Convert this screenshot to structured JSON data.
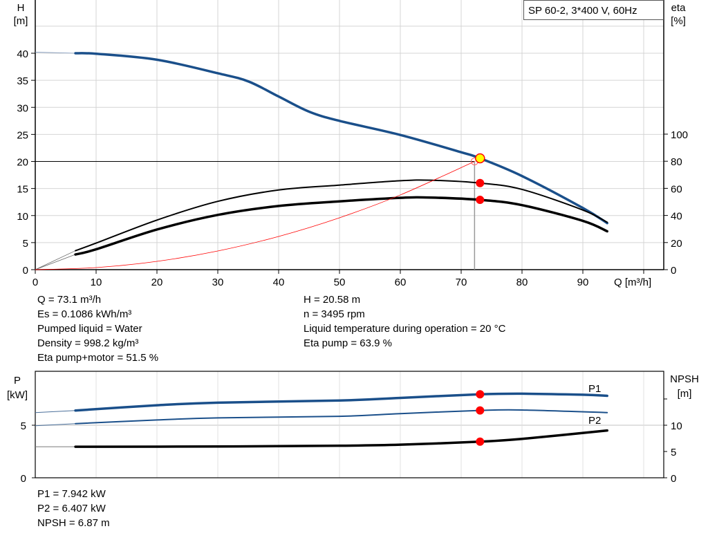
{
  "chart_data": [
    {
      "type": "line",
      "title": "SP 60-2, 3*400 V, 60Hz",
      "xlabel": "Q [m³/h]",
      "ylabel": "H\n[m]",
      "y2label": "eta\n[%]",
      "xlim": [
        0,
        103
      ],
      "ylim": [
        0,
        50
      ],
      "y2lim": [
        0,
        127.5
      ],
      "xticks": [
        0,
        10,
        20,
        30,
        40,
        50,
        60,
        70,
        80,
        90
      ],
      "yticks": [
        0,
        5,
        10,
        15,
        20,
        25,
        30,
        35,
        40
      ],
      "y2ticks": [
        0,
        20,
        40,
        60,
        80,
        100
      ],
      "grid": true,
      "colors": {
        "head": "#1a4f8a",
        "eta": "#000000",
        "system": "#ff0000",
        "duty_point": "#ffff00",
        "marker": "#ff0000"
      },
      "series": [
        {
          "key": "head",
          "axis": "H",
          "x": [
            6.6,
            10,
            20,
            30,
            35,
            40,
            45,
            50,
            60,
            70,
            73.1,
            80,
            90,
            94
          ],
          "y": [
            40,
            39.9,
            38.8,
            36.3,
            34.8,
            32,
            29.2,
            27.5,
            24.9,
            21.7,
            20.58,
            17.3,
            11.4,
            8.6
          ],
          "extrapolated_start": [
            0,
            40.2
          ]
        },
        {
          "key": "eta_pump",
          "axis": "eta",
          "x": [
            6.6,
            10,
            20,
            30,
            40,
            50,
            60,
            65,
            73.1,
            80,
            90,
            94
          ],
          "y": [
            14,
            19.6,
            36.6,
            50.4,
            58.8,
            62.4,
            65.6,
            66,
            63.9,
            59.2,
            44,
            35
          ],
          "extrapolated_start": [
            0,
            0
          ]
        },
        {
          "key": "eta_pump_motor",
          "axis": "eta",
          "x": [
            6.6,
            10,
            20,
            30,
            40,
            50,
            60,
            65,
            73.1,
            80,
            90,
            94
          ],
          "y": [
            11.2,
            15,
            29.6,
            40.4,
            47,
            50.4,
            53,
            53.2,
            51.5,
            47.6,
            36,
            28.3
          ],
          "extrapolated_start": [
            0,
            0
          ]
        },
        {
          "key": "system",
          "axis": "H",
          "x": [
            0,
            10,
            20,
            30,
            40,
            50,
            60,
            72.2
          ],
          "y": [
            0,
            0.38,
            1.53,
            3.45,
            6.14,
            9.59,
            13.81,
            20
          ]
        }
      ],
      "duty_point": {
        "Q": 73.1,
        "H": 20.58
      },
      "requested_point": {
        "Q": 72.2,
        "H": 20
      }
    },
    {
      "type": "line",
      "xlabel": "",
      "ylabel": "P\n[kW]",
      "y2label": "NPSH\n[m]",
      "xlim": [
        0,
        103
      ],
      "ylim": [
        0,
        10
      ],
      "y2lim": [
        0,
        20
      ],
      "yticks": [
        0,
        5
      ],
      "y2ticks": [
        0,
        5,
        10
      ],
      "grid": true,
      "series": [
        {
          "name": "P1",
          "key": "p1",
          "axis": "P",
          "x": [
            6.6,
            20,
            30,
            50,
            60,
            73.1,
            80,
            90,
            94
          ],
          "y": [
            6.4,
            6.9,
            7.15,
            7.35,
            7.6,
            7.942,
            8.0,
            7.9,
            7.8
          ],
          "extrapolated_start": [
            0,
            6.2
          ]
        },
        {
          "name": "P2",
          "key": "p2",
          "axis": "P",
          "x": [
            6.6,
            20,
            30,
            50,
            60,
            73.1,
            80,
            94
          ],
          "y": [
            5.15,
            5.5,
            5.7,
            5.85,
            6.1,
            6.407,
            6.45,
            6.2
          ],
          "extrapolated_start": [
            0,
            4.95
          ]
        },
        {
          "key": "npsh",
          "axis": "NPSH",
          "x": [
            6.6,
            30,
            50,
            60,
            73.1,
            80,
            94
          ],
          "y": [
            5.9,
            5.95,
            6.1,
            6.3,
            6.87,
            7.4,
            9.0
          ],
          "extrapolated_start": [
            0,
            5.9
          ]
        }
      ],
      "duty_Q": 73.1
    }
  ],
  "info_top": {
    "left": [
      "Q = 73.1 m³/h",
      "Es = 0.1086 kWh/m³",
      "Pumped liquid = Water",
      "Density = 998.2 kg/m³",
      "Eta pump+motor = 51.5 %"
    ],
    "right": [
      "H = 20.58 m",
      "n = 3495 rpm",
      "Liquid temperature during operation = 20 °C",
      "Eta pump = 63.9 %"
    ]
  },
  "info_bottom": [
    "P1 = 7.942 kW",
    "P2 = 6.407 kW",
    "NPSH = 6.87 m"
  ]
}
